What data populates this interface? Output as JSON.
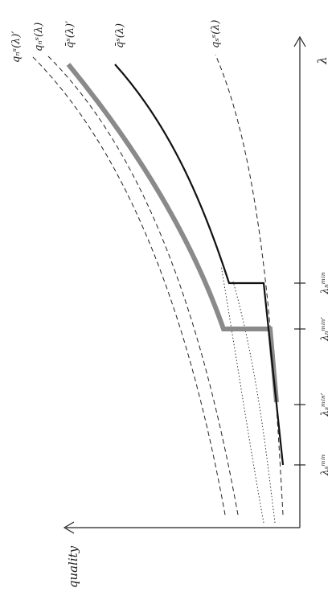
{
  "labels": {
    "quality": "quality",
    "lambda": "λ",
    "curve_qn_prime": "qₙˢ(λ)′",
    "curve_qn": "qₙˢ(λ)",
    "curve_qbar_prime": "q̄ˢ(λ)′",
    "curve_qbar": "q̄ˢ(λ)",
    "curve_qs": "qₛˢ(λ)",
    "tick_ls_min": "λₛᵐⁱⁿ",
    "tick_ls_min_prime": "λₛᵐⁱⁿ′",
    "tick_ln_min_prime": "λₙᵐⁱⁿ′",
    "tick_ln_min": "λₙᵐⁱⁿ"
  },
  "colors": {
    "axis": "#222222",
    "curve_black": "#111111",
    "curve_gray": "#8a8a8a"
  }
}
